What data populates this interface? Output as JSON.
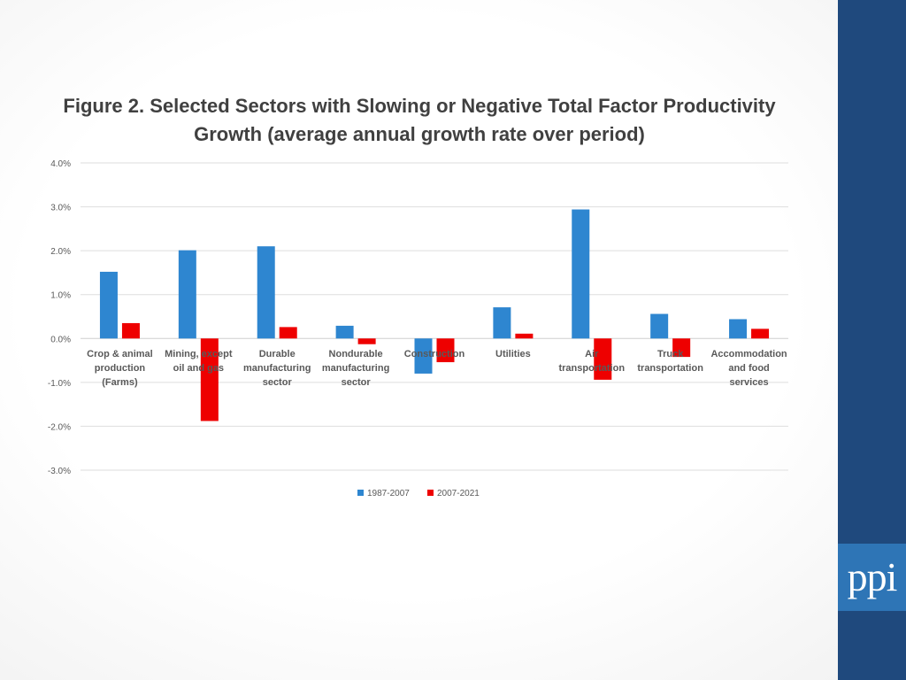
{
  "chart_data": {
    "type": "bar",
    "title": "Figure 2. Selected Sectors with Slowing or Negative Total Factor Productivity Growth (average annual growth rate over period)",
    "categories": [
      [
        "Crop & animal",
        "production",
        "(Farms)"
      ],
      [
        "Mining, except",
        "oil and gas"
      ],
      [
        "Durable",
        "manufacturing",
        "sector"
      ],
      [
        "Nondurable",
        "manufacturing",
        "sector"
      ],
      [
        "Construction"
      ],
      [
        "Utilities"
      ],
      [
        "Air",
        "transportation"
      ],
      [
        "Truck",
        "transportation"
      ],
      [
        "Accommodation",
        "and food",
        "services"
      ]
    ],
    "series": [
      {
        "name": "1987-2007",
        "color": "#2e86d0",
        "values": [
          1.52,
          2.01,
          2.1,
          0.29,
          -0.8,
          0.71,
          2.94,
          0.56,
          0.44
        ]
      },
      {
        "name": "2007-2021",
        "color": "#ee0000",
        "values": [
          0.35,
          -1.88,
          0.26,
          -0.13,
          -0.54,
          0.11,
          -0.94,
          -0.42,
          0.22
        ]
      }
    ],
    "ylim": [
      -3.0,
      4.0
    ],
    "yticks": [
      "4.0%",
      "3.0%",
      "2.0%",
      "1.0%",
      "0.0%",
      "-1.0%",
      "-2.0%",
      "-3.0%"
    ],
    "xlabel": "",
    "ylabel": "",
    "grid": true,
    "legend_position": "bottom"
  },
  "branding": {
    "logo_text": "ppi"
  }
}
